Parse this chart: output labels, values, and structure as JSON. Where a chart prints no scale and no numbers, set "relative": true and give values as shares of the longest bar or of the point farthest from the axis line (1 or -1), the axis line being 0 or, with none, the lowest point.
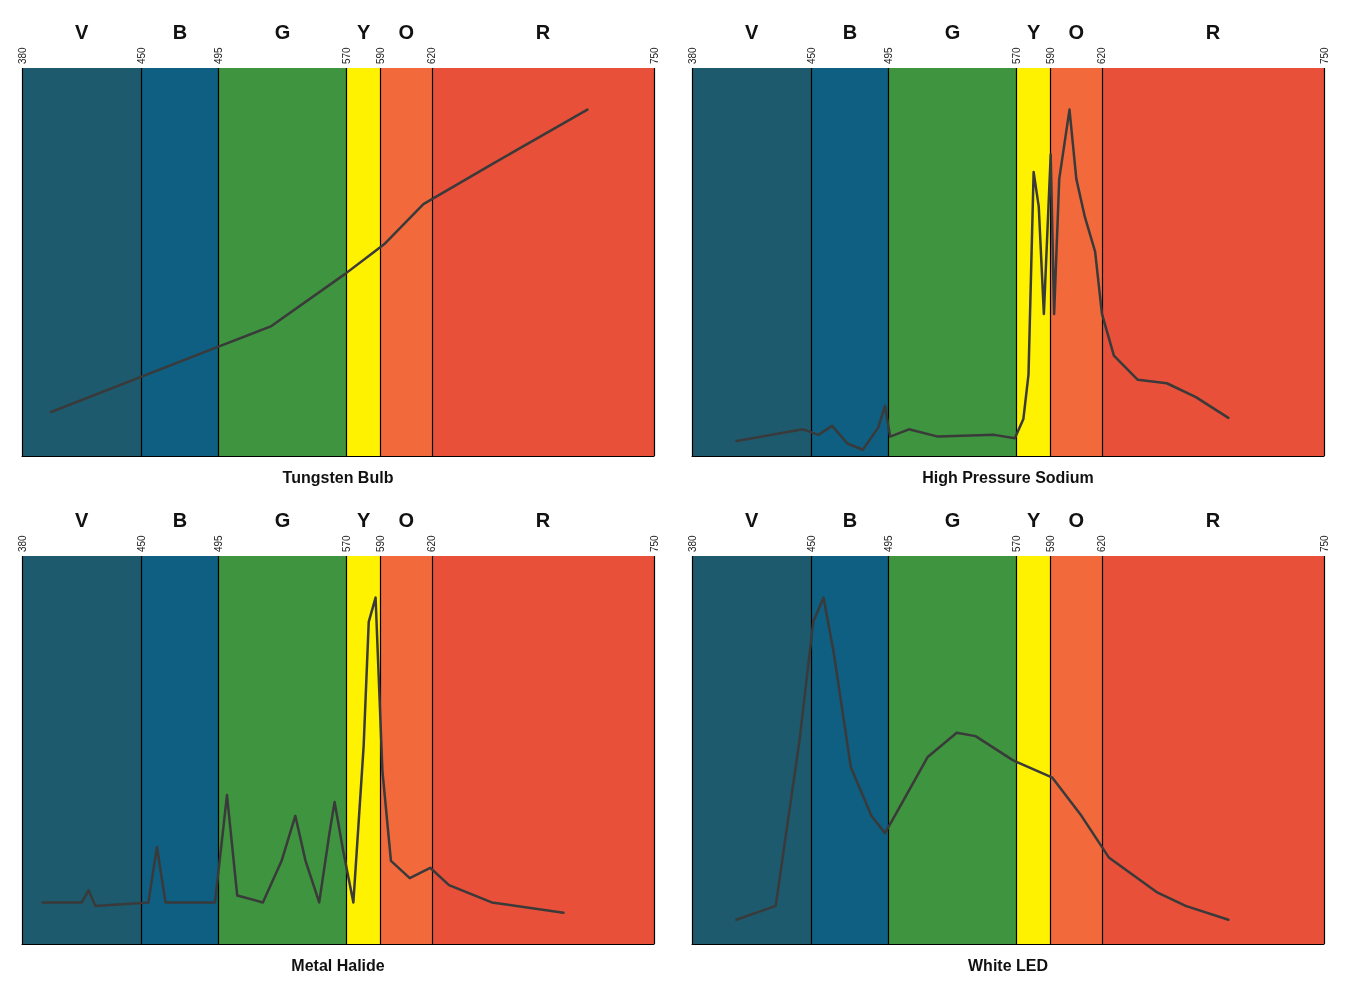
{
  "chart_data": [
    {
      "type": "line",
      "title": "Tungsten Bulb",
      "relative": true,
      "tick_labels": "x",
      "grid": "x",
      "marker": "none",
      "xlim": [
        380,
        750
      ],
      "xticks": [
        380,
        450,
        495,
        570,
        590,
        620,
        750
      ],
      "bands": [
        {
          "axis": "x",
          "from": 380,
          "to": 450,
          "label": "V",
          "color": "#1d5a6e"
        },
        {
          "axis": "x",
          "from": 450,
          "to": 495,
          "label": "B",
          "color": "#0e5f82"
        },
        {
          "axis": "x",
          "from": 495,
          "to": 570,
          "label": "G",
          "color": "#3f9440"
        },
        {
          "axis": "x",
          "from": 570,
          "to": 590,
          "label": "Y",
          "color": "#fff200"
        },
        {
          "axis": "x",
          "from": 590,
          "to": 620,
          "label": "O",
          "color": "#f26a3c"
        },
        {
          "axis": "x",
          "from": 620,
          "to": 750,
          "label": "R",
          "color": "#e8503a"
        }
      ],
      "x": [
        397,
        492,
        526,
        569,
        592,
        615,
        655,
        711
      ],
      "series": [
        {
          "color": "#3a3a3a",
          "values": [
            0.127,
            0.31,
            0.375,
            0.525,
            0.611,
            0.727,
            0.842,
            1.0
          ]
        }
      ]
    },
    {
      "type": "line",
      "title": "High Pressure Sodium",
      "relative": true,
      "tick_labels": "x",
      "grid": "x",
      "marker": "none",
      "xlim": [
        380,
        750
      ],
      "xticks": [
        380,
        450,
        495,
        570,
        590,
        620,
        750
      ],
      "bands": [
        {
          "axis": "x",
          "from": 380,
          "to": 450,
          "label": "V",
          "color": "#1d5a6e"
        },
        {
          "axis": "x",
          "from": 450,
          "to": 495,
          "label": "B",
          "color": "#0e5f82"
        },
        {
          "axis": "x",
          "from": 495,
          "to": 570,
          "label": "G",
          "color": "#3f9440"
        },
        {
          "axis": "x",
          "from": 570,
          "to": 590,
          "label": "Y",
          "color": "#fff200"
        },
        {
          "axis": "x",
          "from": 590,
          "to": 620,
          "label": "O",
          "color": "#f26a3c"
        },
        {
          "axis": "x",
          "from": 620,
          "to": 750,
          "label": "R",
          "color": "#e8503a"
        }
      ],
      "x": [
        406,
        445,
        454,
        462,
        471,
        480,
        489,
        493,
        496,
        507,
        524,
        557,
        569,
        574,
        577,
        580,
        583,
        586,
        590,
        592,
        595,
        601,
        605,
        610,
        616,
        620,
        627,
        641,
        658,
        675,
        694
      ],
      "series": [
        {
          "color": "#3a3a3a",
          "values": [
            0.043,
            0.077,
            0.061,
            0.087,
            0.036,
            0.018,
            0.082,
            0.145,
            0.056,
            0.077,
            0.056,
            0.061,
            0.051,
            0.107,
            0.235,
            0.82,
            0.72,
            0.41,
            0.87,
            0.41,
            0.8,
            1.0,
            0.8,
            0.69,
            0.59,
            0.41,
            0.29,
            0.22,
            0.21,
            0.17,
            0.11
          ]
        }
      ]
    },
    {
      "type": "line",
      "title": "Metal Halide",
      "relative": true,
      "tick_labels": "x",
      "grid": "x",
      "marker": "none",
      "xlim": [
        380,
        750
      ],
      "xticks": [
        380,
        450,
        495,
        570,
        590,
        620,
        750
      ],
      "bands": [
        {
          "axis": "x",
          "from": 380,
          "to": 450,
          "label": "V",
          "color": "#1d5a6e"
        },
        {
          "axis": "x",
          "from": 450,
          "to": 495,
          "label": "B",
          "color": "#0e5f82"
        },
        {
          "axis": "x",
          "from": 495,
          "to": 570,
          "label": "G",
          "color": "#3f9440"
        },
        {
          "axis": "x",
          "from": 570,
          "to": 590,
          "label": "Y",
          "color": "#fff200"
        },
        {
          "axis": "x",
          "from": 590,
          "to": 620,
          "label": "O",
          "color": "#f26a3c"
        },
        {
          "axis": "x",
          "from": 620,
          "to": 750,
          "label": "R",
          "color": "#e8503a"
        }
      ],
      "x": [
        392,
        415,
        419,
        423,
        454,
        459,
        464,
        493,
        500,
        506,
        521,
        532,
        540,
        546,
        554,
        560,
        563,
        568,
        574,
        580,
        583,
        587,
        591,
        596,
        607,
        619,
        630,
        655,
        697
      ],
      "series": [
        {
          "color": "#3a3a3a",
          "values": [
            0.12,
            0.12,
            0.155,
            0.11,
            0.12,
            0.28,
            0.12,
            0.12,
            0.43,
            0.14,
            0.12,
            0.24,
            0.37,
            0.24,
            0.12,
            0.32,
            0.41,
            0.27,
            0.12,
            0.57,
            0.93,
            1.0,
            0.5,
            0.24,
            0.19,
            0.22,
            0.17,
            0.12,
            0.09
          ]
        }
      ]
    },
    {
      "type": "line",
      "title": "White LED",
      "relative": true,
      "tick_labels": "x",
      "grid": "x",
      "marker": "none",
      "xlim": [
        380,
        750
      ],
      "xticks": [
        380,
        450,
        495,
        570,
        590,
        620,
        750
      ],
      "bands": [
        {
          "axis": "x",
          "from": 380,
          "to": 450,
          "label": "V",
          "color": "#1d5a6e"
        },
        {
          "axis": "x",
          "from": 450,
          "to": 495,
          "label": "B",
          "color": "#0e5f82"
        },
        {
          "axis": "x",
          "from": 495,
          "to": 570,
          "label": "G",
          "color": "#3f9440"
        },
        {
          "axis": "x",
          "from": 570,
          "to": 590,
          "label": "Y",
          "color": "#fff200"
        },
        {
          "axis": "x",
          "from": 590,
          "to": 620,
          "label": "O",
          "color": "#f26a3c"
        },
        {
          "axis": "x",
          "from": 620,
          "to": 750,
          "label": "R",
          "color": "#e8503a"
        }
      ],
      "x": [
        406,
        429,
        443,
        451,
        457,
        463,
        473,
        485,
        493,
        501,
        518,
        535,
        546,
        568,
        591,
        608,
        624,
        652,
        669,
        694
      ],
      "series": [
        {
          "color": "#3a3a3a",
          "values": [
            0.07,
            0.11,
            0.59,
            0.93,
            1.0,
            0.84,
            0.51,
            0.37,
            0.32,
            0.39,
            0.54,
            0.61,
            0.6,
            0.53,
            0.48,
            0.37,
            0.25,
            0.15,
            0.11,
            0.07
          ]
        }
      ]
    }
  ]
}
